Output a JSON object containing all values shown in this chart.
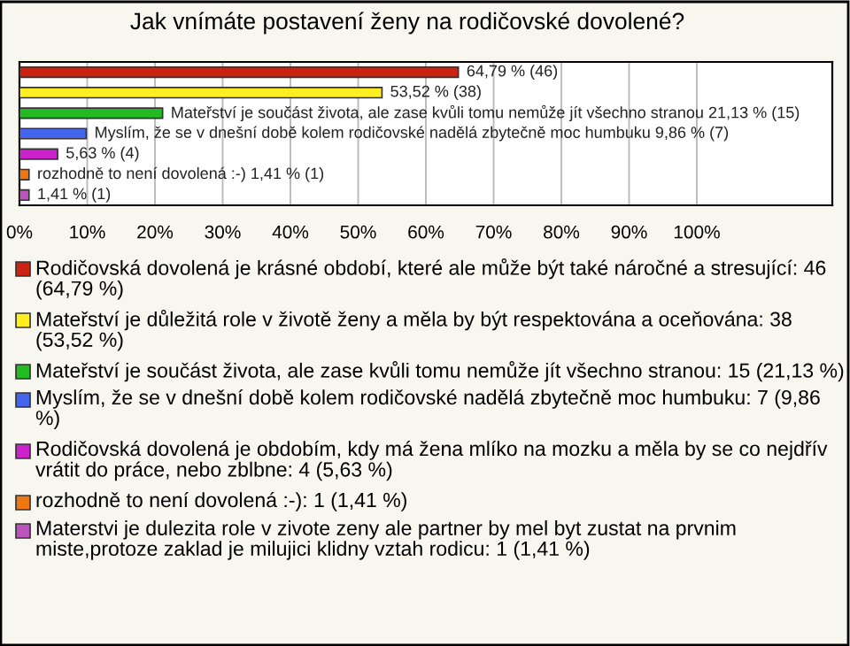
{
  "chart_data": {
    "type": "bar",
    "orientation": "horizontal",
    "title": "Jak vnímáte postavení ženy na rodičovské dovolené?",
    "categories": [
      null,
      null,
      null,
      null,
      null,
      null,
      null
    ],
    "series": [
      {
        "name": "Rodičovská dovolená je krásné období, které ale může být také náročné a stresující: 46 (64,79 %)",
        "color": "#cc2211",
        "values": [
          64.79,
          null,
          null,
          null,
          null,
          null,
          null
        ],
        "value_labels": [
          "64,79 % (46)",
          null,
          null,
          null,
          null,
          null,
          null
        ]
      },
      {
        "name": "Mateřství je důležitá role v životě ženy a měla by být respektována a oceňována: 38 (53,52 %)",
        "color": "#ffee22",
        "values": [
          null,
          53.52,
          null,
          null,
          null,
          null,
          null
        ],
        "value_labels": [
          null,
          "53,52 % (38)",
          null,
          null,
          null,
          null,
          null
        ]
      },
      {
        "name": "Mateřství je součást života, ale zase kvůli tomu nemůže jít všechno stranou: 15 (21,13 %)",
        "color": "#22bb22",
        "values": [
          null,
          null,
          21.13,
          null,
          null,
          null,
          null
        ],
        "value_labels": [
          null,
          null,
          "Mateřství je součást života, ale zase kvůli tomu nemůže jít všechno stranou 21,13 % (15)",
          null,
          null,
          null,
          null
        ]
      },
      {
        "name": "Myslím, že se v dnešní době kolem rodičovské nadělá zbytečně moc humbuku: 7 (9,86 %)",
        "color": "#4466ee",
        "values": [
          null,
          null,
          null,
          9.86,
          null,
          null,
          null
        ],
        "value_labels": [
          null,
          null,
          null,
          "Myslím, že se v dnešní době kolem rodičovské nadělá zbytečně moc humbuku 9,86 % (7)",
          null,
          null,
          null
        ]
      },
      {
        "name": "Rodičovská dovolená je obdobím, kdy má žena mlíko na mozku a měla by se co nejdřív vrátit do práce, nebo zblbne: 4 (5,63 %)",
        "color": "#cc22cc",
        "values": [
          null,
          null,
          null,
          null,
          5.63,
          null,
          null
        ],
        "value_labels": [
          null,
          null,
          null,
          null,
          "5,63 % (4)",
          null,
          null
        ]
      },
      {
        "name": "rozhodně to není dovolená :-): 1 (1,41 %)",
        "color": "#ee7711",
        "values": [
          null,
          null,
          null,
          null,
          null,
          1.41,
          null
        ],
        "value_labels": [
          null,
          null,
          null,
          null,
          null,
          "rozhodně to není dovolená :-) 1,41 % (1)",
          null
        ]
      },
      {
        "name": "Materstvi je dulezita role v zivote zeny ale partner by mel byt zustat na prvnim miste,protoze zaklad je milujici klidny vztah rodicu: 1 (1,41 %)",
        "color": "#bb55bb",
        "values": [
          null,
          null,
          null,
          null,
          null,
          null,
          1.41
        ],
        "value_labels": [
          null,
          null,
          null,
          null,
          null,
          null,
          "1,41 % (1)"
        ]
      }
    ],
    "xlim": [
      0,
      120
    ],
    "xticks": [
      {
        "value": 0,
        "label": "0%"
      },
      {
        "value": 10,
        "label": "10%"
      },
      {
        "value": 20,
        "label": "20%"
      },
      {
        "value": 30,
        "label": "30%"
      },
      {
        "value": 40,
        "label": "40%"
      },
      {
        "value": 50,
        "label": "50%"
      },
      {
        "value": 60,
        "label": "60%"
      },
      {
        "value": 70,
        "label": "70%"
      },
      {
        "value": 80,
        "label": "80%"
      },
      {
        "value": 90,
        "label": "90%"
      },
      {
        "value": 100,
        "label": "100%"
      }
    ],
    "grid": "x",
    "legend": "bottom",
    "tick_labels": "x"
  }
}
